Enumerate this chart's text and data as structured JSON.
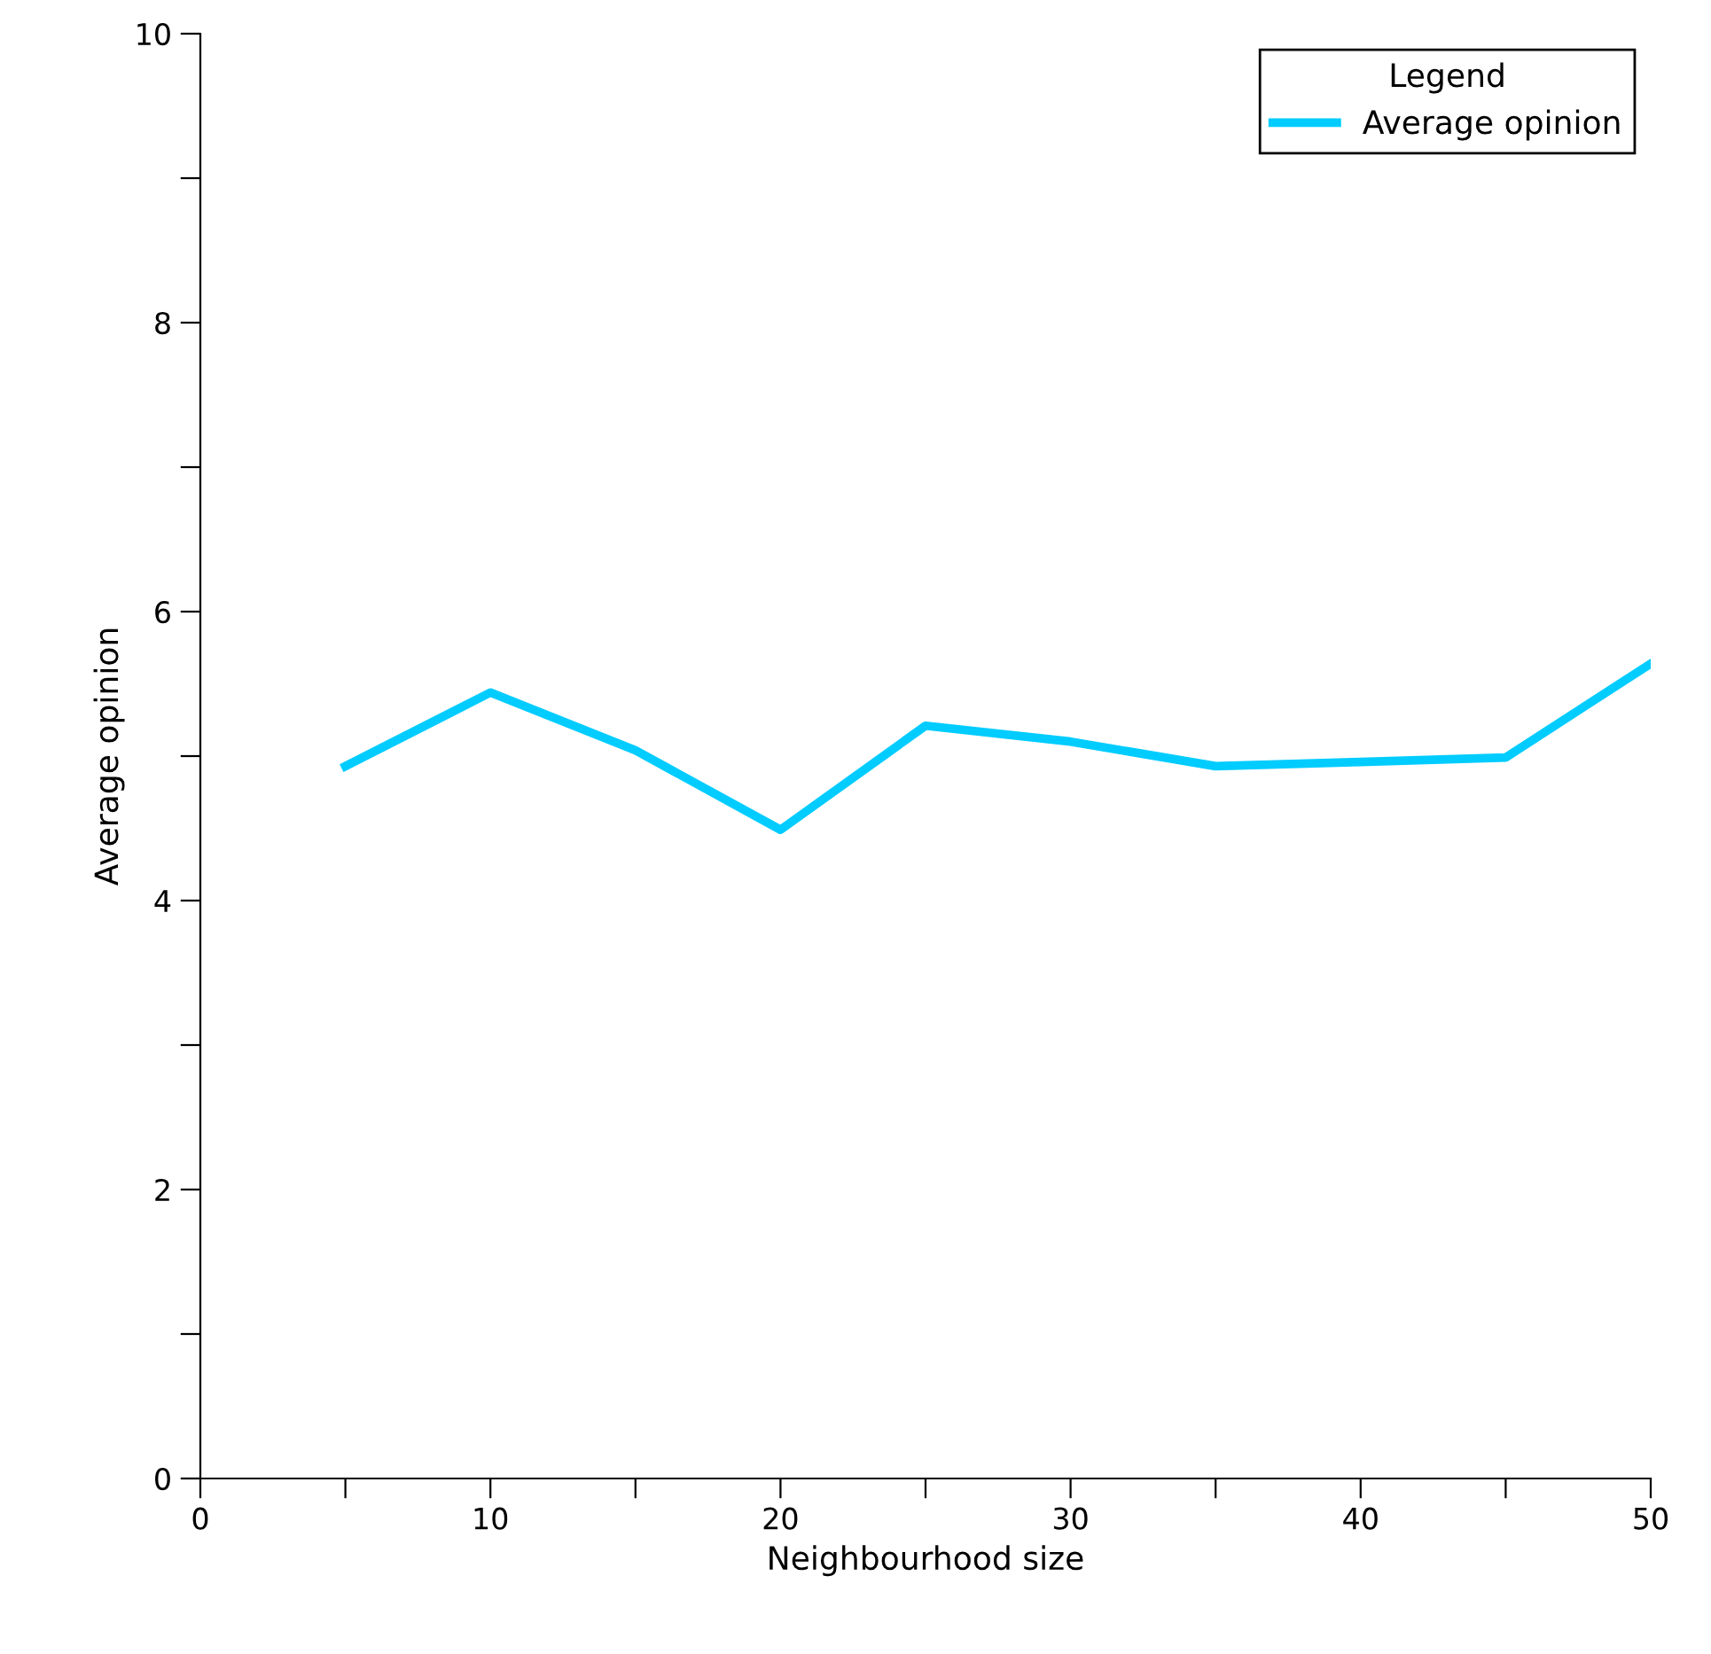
{
  "chart_data": {
    "type": "line",
    "xlabel": "Neighbourhood size",
    "ylabel": "Average opinion",
    "legend_title": "Legend",
    "x": [
      5,
      10,
      15,
      20,
      25,
      30,
      35,
      40,
      45,
      50
    ],
    "series": [
      {
        "name": "Average opinion",
        "color": "#00ccff",
        "values": [
          4.93,
          5.44,
          5.04,
          4.49,
          5.21,
          5.1,
          4.93,
          4.96,
          4.99,
          5.64
        ]
      }
    ],
    "xlim": [
      0,
      50
    ],
    "ylim": [
      0,
      10
    ],
    "xticks": [
      0,
      {
        "value": 5,
        "label": null
      },
      10,
      {
        "value": 15,
        "label": null
      },
      20,
      {
        "value": 25,
        "label": null
      },
      30,
      {
        "value": 35,
        "label": null
      },
      40,
      {
        "value": 45,
        "label": null
      },
      50
    ],
    "yticks": [
      0,
      {
        "value": 1,
        "label": null
      },
      2,
      {
        "value": 3,
        "label": null
      },
      4,
      {
        "value": 5,
        "label": null
      },
      6,
      {
        "value": 7,
        "label": null
      },
      8,
      {
        "value": 9,
        "label": null
      },
      10
    ],
    "grid": false,
    "legend": "top right",
    "marker": "none",
    "line_style": "solid"
  }
}
